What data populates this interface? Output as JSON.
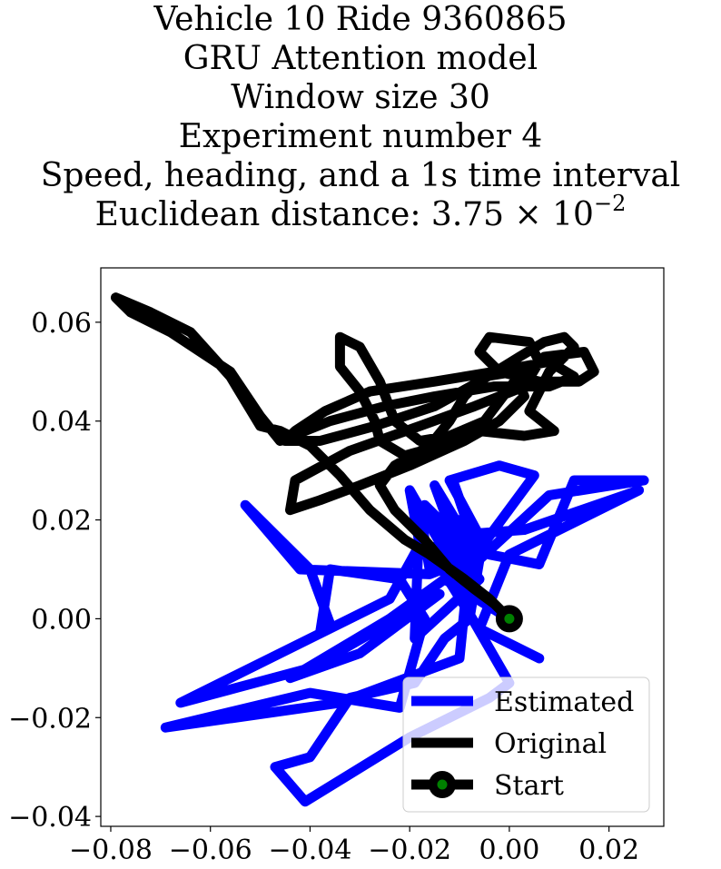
{
  "chart_data": {
    "type": "line",
    "title_lines": [
      "Vehicle 10 Ride 9360865",
      "GRU Attention model",
      "Window size 30",
      "Experiment number 4",
      "Speed, heading, and a 1s time interval"
    ],
    "distance_title": {
      "prefix": "Euclidean distance: 3.75 × 10",
      "exponent": "−2"
    },
    "xlabel": "",
    "ylabel": "",
    "xlim": [
      -0.082,
      0.031
    ],
    "ylim": [
      -0.042,
      0.071
    ],
    "x_ticks": [
      {
        "value": -0.08,
        "label": "−0.08"
      },
      {
        "value": -0.06,
        "label": "−0.06"
      },
      {
        "value": -0.04,
        "label": "−0.04"
      },
      {
        "value": -0.02,
        "label": "−0.02"
      },
      {
        "value": 0.0,
        "label": "0.00"
      },
      {
        "value": 0.02,
        "label": "0.02"
      }
    ],
    "y_ticks": [
      {
        "value": 0.06,
        "label": "0.06"
      },
      {
        "value": 0.04,
        "label": "0.04"
      },
      {
        "value": 0.02,
        "label": "0.02"
      },
      {
        "value": 0.0,
        "label": "0.00"
      },
      {
        "value": -0.02,
        "label": "−0.02"
      },
      {
        "value": -0.04,
        "label": "−0.04"
      }
    ],
    "grid": false,
    "legend_position": "lower-right",
    "series": [
      {
        "name": "Estimated",
        "color": "#0000ff",
        "points": [
          [
            0.0,
            0.0
          ],
          [
            -0.013,
            0.008
          ],
          [
            -0.024,
            0.0
          ],
          [
            -0.044,
            -0.012
          ],
          [
            -0.03,
            -0.007
          ],
          [
            -0.014,
            0.005
          ],
          [
            -0.04,
            -0.01
          ],
          [
            -0.066,
            -0.017
          ],
          [
            -0.024,
            0.004
          ],
          [
            -0.018,
            0.015
          ],
          [
            -0.02,
            0.026
          ],
          [
            -0.008,
            0.005
          ],
          [
            -0.011,
            0.016
          ],
          [
            -0.015,
            0.027
          ],
          [
            -0.006,
            0.012
          ],
          [
            -0.017,
            0.023
          ],
          [
            -0.006,
            0.008
          ],
          [
            -0.019,
            -0.004
          ],
          [
            -0.018,
            0.022
          ],
          [
            -0.016,
            0.01
          ],
          [
            -0.008,
            0.012
          ],
          [
            -0.01,
            -0.008
          ],
          [
            -0.034,
            -0.017
          ],
          [
            -0.069,
            -0.022
          ],
          [
            -0.04,
            -0.015
          ],
          [
            -0.022,
            -0.018
          ],
          [
            -0.017,
            0.0
          ],
          [
            -0.022,
            0.008
          ],
          [
            -0.036,
            0.01
          ],
          [
            -0.038,
            -0.003
          ],
          [
            -0.036,
            -0.001
          ],
          [
            -0.04,
            0.01
          ],
          [
            -0.053,
            0.023
          ],
          [
            -0.042,
            0.01
          ],
          [
            -0.016,
            0.009
          ],
          [
            -0.006,
            0.013
          ],
          [
            -0.011,
            0.027
          ],
          [
            -0.006,
            0.012
          ],
          [
            -0.016,
            0.01
          ],
          [
            -0.01,
            0.02
          ],
          [
            -0.012,
            0.013
          ],
          [
            -0.006,
            0.014
          ],
          [
            0.005,
            0.029
          ],
          [
            -0.002,
            0.031
          ],
          [
            -0.012,
            0.028
          ],
          [
            -0.004,
            0.013
          ],
          [
            0.006,
            0.011
          ],
          [
            0.013,
            0.028
          ],
          [
            0.027,
            0.028
          ],
          [
            0.008,
            0.025
          ],
          [
            -0.006,
            0.012
          ],
          [
            -0.008,
            0.0
          ],
          [
            -0.013,
            -0.004
          ],
          [
            -0.019,
            -0.013
          ],
          [
            -0.032,
            -0.016
          ],
          [
            -0.04,
            -0.028
          ],
          [
            -0.047,
            -0.03
          ],
          [
            -0.041,
            -0.037
          ],
          [
            -0.02,
            -0.024
          ],
          [
            -0.004,
            -0.016
          ],
          [
            0.0,
            -0.013
          ],
          [
            -0.008,
            0.001
          ],
          [
            -0.016,
            0.014
          ],
          [
            -0.01,
            0.017
          ],
          [
            0.003,
            0.018
          ],
          [
            0.026,
            0.026
          ],
          [
            0.0,
            0.013
          ],
          [
            -0.006,
            -0.002
          ],
          [
            0.006,
            -0.008
          ]
        ]
      },
      {
        "name": "Original",
        "color": "#000000",
        "points": [
          [
            0.0,
            0.0
          ],
          [
            -0.004,
            0.004
          ],
          [
            -0.009,
            0.008
          ],
          [
            -0.016,
            0.013
          ],
          [
            -0.021,
            0.016
          ],
          [
            -0.028,
            0.022
          ],
          [
            -0.034,
            0.029
          ],
          [
            -0.04,
            0.035
          ],
          [
            -0.046,
            0.038
          ],
          [
            -0.05,
            0.039
          ],
          [
            -0.056,
            0.049
          ],
          [
            -0.064,
            0.058
          ],
          [
            -0.072,
            0.062
          ],
          [
            -0.079,
            0.065
          ],
          [
            -0.076,
            0.062
          ],
          [
            -0.068,
            0.058
          ],
          [
            -0.056,
            0.05
          ],
          [
            -0.05,
            0.041
          ],
          [
            -0.046,
            0.036
          ],
          [
            -0.036,
            0.04
          ],
          [
            -0.025,
            0.043
          ],
          [
            -0.015,
            0.045
          ],
          [
            -0.003,
            0.047
          ],
          [
            0.008,
            0.047
          ],
          [
            0.013,
            0.049
          ],
          [
            0.008,
            0.052
          ],
          [
            -0.003,
            0.05
          ],
          [
            -0.015,
            0.048
          ],
          [
            -0.028,
            0.046
          ],
          [
            -0.037,
            0.042
          ],
          [
            -0.043,
            0.038
          ],
          [
            -0.045,
            0.036
          ],
          [
            -0.038,
            0.036
          ],
          [
            -0.027,
            0.039
          ],
          [
            -0.015,
            0.043
          ],
          [
            -0.006,
            0.048
          ],
          [
            0.002,
            0.053
          ],
          [
            0.007,
            0.056
          ],
          [
            0.011,
            0.057
          ],
          [
            0.013,
            0.055
          ],
          [
            0.008,
            0.05
          ],
          [
            0.004,
            0.042
          ],
          [
            0.009,
            0.038
          ],
          [
            0.003,
            0.037
          ],
          [
            -0.006,
            0.038
          ],
          [
            -0.014,
            0.035
          ],
          [
            -0.021,
            0.033
          ],
          [
            -0.026,
            0.036
          ],
          [
            -0.027,
            0.04
          ],
          [
            -0.03,
            0.046
          ],
          [
            -0.034,
            0.051
          ],
          [
            -0.034,
            0.057
          ],
          [
            -0.03,
            0.055
          ],
          [
            -0.026,
            0.048
          ],
          [
            -0.023,
            0.04
          ],
          [
            -0.018,
            0.036
          ],
          [
            -0.012,
            0.037
          ],
          [
            -0.005,
            0.04
          ],
          [
            0.001,
            0.048
          ],
          [
            0.007,
            0.053
          ],
          [
            0.015,
            0.054
          ],
          [
            0.017,
            0.05
          ],
          [
            0.014,
            0.048
          ],
          [
            0.006,
            0.048
          ],
          [
            -0.002,
            0.05
          ],
          [
            -0.006,
            0.054
          ],
          [
            -0.004,
            0.057
          ],
          [
            0.004,
            0.056
          ],
          [
            0.006,
            0.052
          ],
          [
            0.003,
            0.047
          ],
          [
            -0.007,
            0.043
          ],
          [
            -0.018,
            0.039
          ],
          [
            -0.032,
            0.034
          ],
          [
            -0.043,
            0.028
          ],
          [
            -0.044,
            0.022
          ],
          [
            -0.038,
            0.024
          ],
          [
            -0.03,
            0.027
          ],
          [
            -0.02,
            0.031
          ],
          [
            -0.009,
            0.036
          ],
          [
            -0.002,
            0.04
          ],
          [
            0.003,
            0.045
          ],
          [
            0.001,
            0.05
          ],
          [
            -0.005,
            0.049
          ],
          [
            -0.009,
            0.045
          ],
          [
            -0.012,
            0.04
          ],
          [
            -0.016,
            0.035
          ],
          [
            -0.023,
            0.031
          ],
          [
            -0.026,
            0.027
          ],
          [
            -0.023,
            0.022
          ],
          [
            -0.017,
            0.016
          ],
          [
            -0.012,
            0.01
          ],
          [
            -0.007,
            0.006
          ],
          [
            -0.003,
            0.003
          ],
          [
            0.0,
            0.0
          ]
        ]
      }
    ],
    "start": {
      "name": "Start",
      "x": 0.0,
      "y": 0.0,
      "marker_color": "#008000",
      "edge_color": "#000000"
    }
  }
}
